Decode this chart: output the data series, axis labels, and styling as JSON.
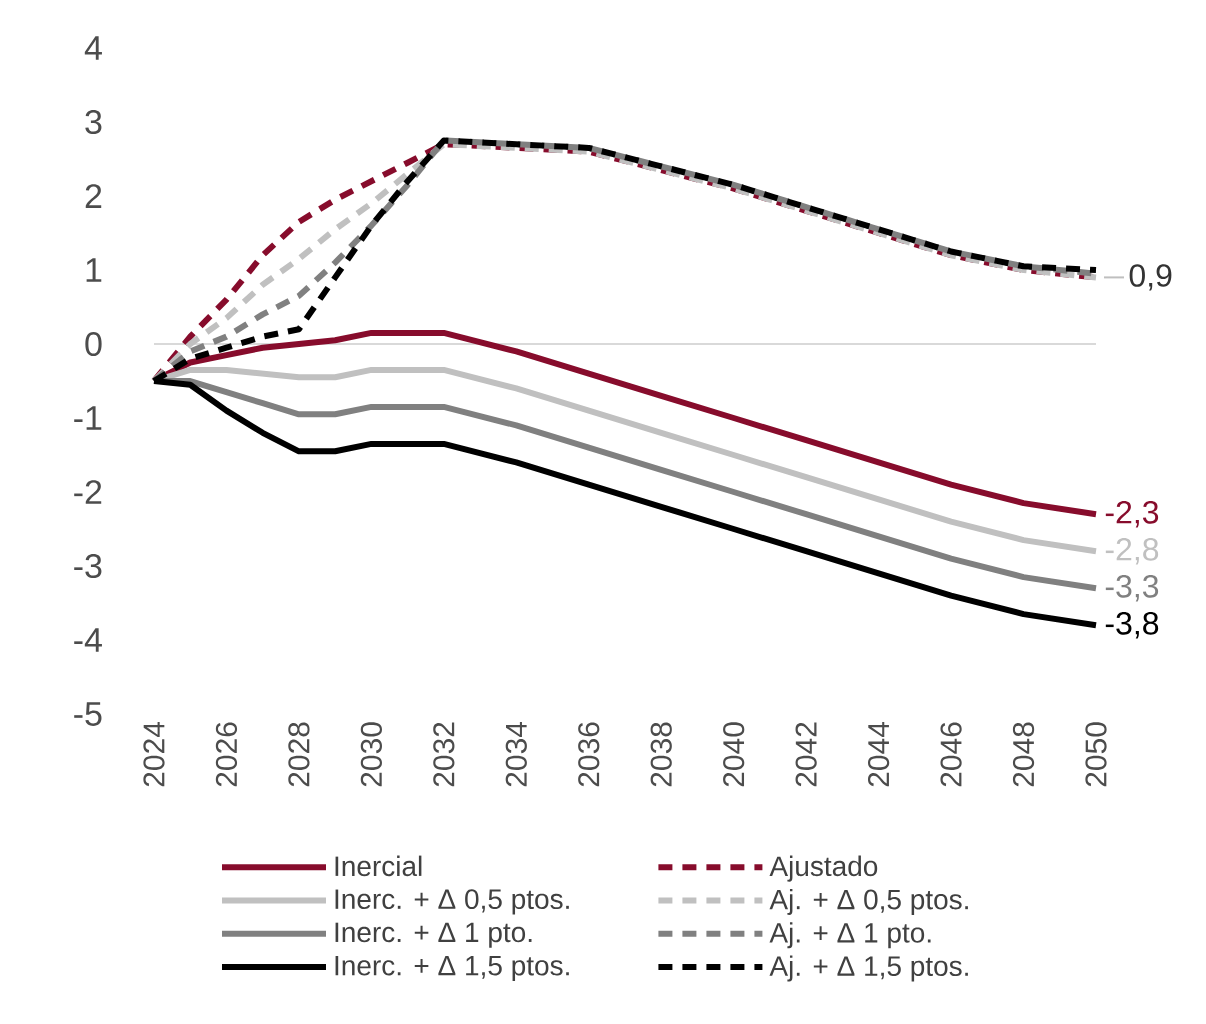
{
  "chart_data": {
    "type": "line",
    "x": [
      2024,
      2025,
      2026,
      2027,
      2028,
      2029,
      2030,
      2031,
      2032,
      2034,
      2036,
      2038,
      2040,
      2042,
      2044,
      2046,
      2048,
      2050
    ],
    "xlim": [
      2024,
      2050
    ],
    "xticks": [
      2024,
      2026,
      2028,
      2030,
      2032,
      2034,
      2036,
      2038,
      2040,
      2042,
      2044,
      2046,
      2048,
      2050
    ],
    "ylim": [
      -5,
      4
    ],
    "yticks": [
      -5,
      -4,
      -3,
      -2,
      -1,
      0,
      1,
      2,
      3,
      4
    ],
    "legend": "bottom",
    "ref_lines": [
      {
        "axis": "y",
        "value": 0,
        "color": "#d9d9d9"
      }
    ],
    "annotations": [
      {
        "text": "0,9",
        "x": 2050,
        "y": 0.9
      }
    ],
    "series": [
      {
        "name": "Inercial",
        "color": "#870c2c",
        "line_style": "solid",
        "values": [
          -0.5,
          -0.25,
          -0.15,
          -0.05,
          0.0,
          0.05,
          0.15,
          0.15,
          0.15,
          -0.1,
          -0.4,
          -0.7,
          -1.0,
          -1.3,
          -1.6,
          -1.9,
          -2.15,
          -2.3
        ],
        "value_labels": [
          null,
          null,
          null,
          null,
          null,
          null,
          null,
          null,
          null,
          null,
          null,
          null,
          null,
          null,
          null,
          null,
          null,
          "-2,3"
        ]
      },
      {
        "name": "Ajustado",
        "color": "#870c2c",
        "line_style": "dashed",
        "values": [
          -0.5,
          0.1,
          0.6,
          1.2,
          1.65,
          1.95,
          2.2,
          2.45,
          2.7,
          2.65,
          2.6,
          2.35,
          2.1,
          1.8,
          1.5,
          1.2,
          1.0,
          0.9
        ]
      },
      {
        "name": "Inerc. + Δ 0,5 ptos.",
        "color": "#c0c0c0",
        "line_style": "solid",
        "values": [
          -0.5,
          -0.35,
          -0.35,
          -0.4,
          -0.45,
          -0.45,
          -0.35,
          -0.35,
          -0.35,
          -0.6,
          -0.9,
          -1.2,
          -1.5,
          -1.8,
          -2.1,
          -2.4,
          -2.65,
          -2.8
        ],
        "value_labels": [
          null,
          null,
          null,
          null,
          null,
          null,
          null,
          null,
          null,
          null,
          null,
          null,
          null,
          null,
          null,
          null,
          null,
          "-2,8"
        ]
      },
      {
        "name": "Aj. + Δ 0,5 ptos.",
        "color": "#c0c0c0",
        "line_style": "dashed",
        "values": [
          -0.5,
          0.0,
          0.35,
          0.8,
          1.15,
          1.55,
          1.9,
          2.3,
          2.7,
          2.65,
          2.6,
          2.35,
          2.1,
          1.8,
          1.5,
          1.2,
          1.0,
          0.9
        ]
      },
      {
        "name": "Inerc. + Δ 1 pto.",
        "color": "#808080",
        "line_style": "solid",
        "values": [
          -0.5,
          -0.5,
          -0.65,
          -0.8,
          -0.95,
          -0.95,
          -0.85,
          -0.85,
          -0.85,
          -1.1,
          -1.4,
          -1.7,
          -2.0,
          -2.3,
          -2.6,
          -2.9,
          -3.15,
          -3.3
        ],
        "value_labels": [
          null,
          null,
          null,
          null,
          null,
          null,
          null,
          null,
          null,
          null,
          null,
          null,
          null,
          null,
          null,
          null,
          null,
          "-3,3"
        ]
      },
      {
        "name": "Aj. + Δ 1 pto.",
        "color": "#808080",
        "line_style": "dashed",
        "values": [
          -0.5,
          -0.1,
          0.1,
          0.4,
          0.65,
          1.1,
          1.6,
          2.15,
          2.75,
          2.7,
          2.65,
          2.4,
          2.15,
          1.85,
          1.55,
          1.25,
          1.05,
          0.95
        ]
      },
      {
        "name": "Inerc. + Δ 1,5 ptos.",
        "color": "#000000",
        "line_style": "solid",
        "values": [
          -0.5,
          -0.55,
          -0.9,
          -1.2,
          -1.45,
          -1.45,
          -1.35,
          -1.35,
          -1.35,
          -1.6,
          -1.9,
          -2.2,
          -2.5,
          -2.8,
          -3.1,
          -3.4,
          -3.65,
          -3.8
        ],
        "value_labels": [
          null,
          null,
          null,
          null,
          null,
          null,
          null,
          null,
          null,
          null,
          null,
          null,
          null,
          null,
          null,
          null,
          null,
          "-3,8"
        ]
      },
      {
        "name": "Aj. + Δ 1,5 ptos.",
        "color": "#000000",
        "line_style": "dashed",
        "values": [
          -0.5,
          -0.2,
          -0.05,
          0.1,
          0.2,
          0.9,
          1.6,
          2.2,
          2.75,
          2.7,
          2.65,
          2.4,
          2.15,
          1.85,
          1.55,
          1.25,
          1.05,
          1.0
        ]
      }
    ]
  }
}
